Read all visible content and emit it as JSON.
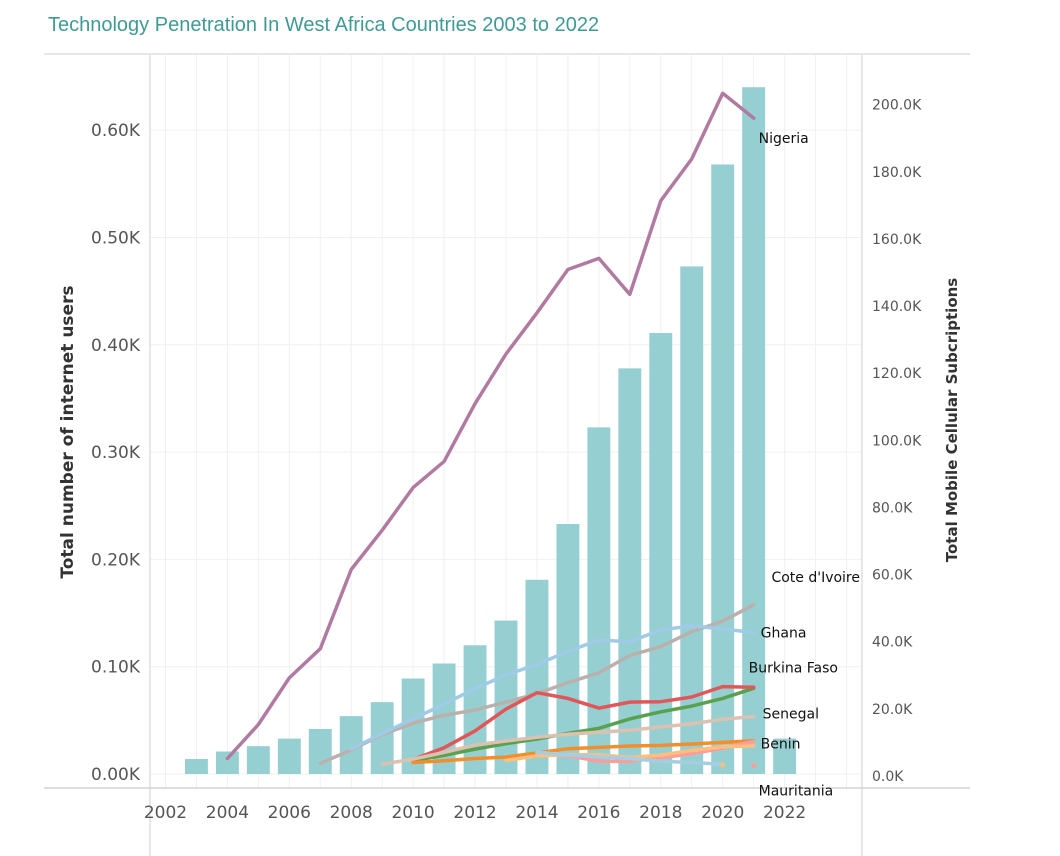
{
  "chart_data": {
    "type": "bar",
    "title": "Technology Penetration In West Africa Countries 2003 to 2022",
    "xlabel": "",
    "x_ticks": [
      "2002",
      "2004",
      "2006",
      "2008",
      "2010",
      "2012",
      "2014",
      "2016",
      "2018",
      "2020",
      "2022"
    ],
    "left_axis": {
      "label": "Total number of internet users",
      "ticks": [
        "0.00K",
        "0.10K",
        "0.20K",
        "0.30K",
        "0.40K",
        "0.50K",
        "0.60K"
      ],
      "ylim": [
        -0.013,
        0.67
      ]
    },
    "right_axis": {
      "label": "Total Mobile Cellular Subcriptions",
      "ticks": [
        "0.0K",
        "20.0K",
        "40.0K",
        "60.0K",
        "80.0K",
        "100.0K",
        "120.0K",
        "140.0K",
        "160.0K",
        "180.0K",
        "200.0K"
      ],
      "ylim": [
        -3.6,
        214.8
      ]
    },
    "bars": {
      "color": "#96cfd1",
      "x": [
        2003,
        2004,
        2005,
        2006,
        2007,
        2008,
        2009,
        2010,
        2011,
        2012,
        2013,
        2014,
        2015,
        2016,
        2017,
        2018,
        2019,
        2020,
        2021,
        2022
      ],
      "values": [
        0.014,
        0.021,
        0.026,
        0.033,
        0.042,
        0.054,
        0.067,
        0.089,
        0.103,
        0.12,
        0.143,
        0.181,
        0.233,
        0.323,
        0.378,
        0.411,
        0.473,
        0.568,
        0.64,
        0.033
      ]
    },
    "series": [
      {
        "name": "Nigeria",
        "color": "#b07aa1",
        "x": [
          2004,
          2005,
          2006,
          2007,
          2008,
          2009,
          2010,
          2011,
          2012,
          2013,
          2014,
          2015,
          2016,
          2017,
          2018,
          2019,
          2020,
          2021
        ],
        "values": [
          5.2,
          15.3,
          29.2,
          37.9,
          61.5,
          73.2,
          85.9,
          93.7,
          110.9,
          125.7,
          138.0,
          150.9,
          154.2,
          143.5,
          171.4,
          183.8,
          203.4,
          196.0
        ]
      },
      {
        "name": "Cote d'Ivoire",
        "color": "#bab0ac",
        "x": [
          2007,
          2008,
          2009,
          2010,
          2011,
          2012,
          2013,
          2014,
          2015,
          2016,
          2017,
          2018,
          2019,
          2020,
          2021
        ],
        "values": [
          3.8,
          7.7,
          12.3,
          15.7,
          18.1,
          19.6,
          22.0,
          24.5,
          27.8,
          30.7,
          35.9,
          38.5,
          43.0,
          46.1,
          51.0
        ]
      },
      {
        "name": "Ghana",
        "color": "#a0cbe8",
        "x": [
          2008,
          2009,
          2010,
          2011,
          2012,
          2013,
          2014,
          2015,
          2016,
          2017,
          2018,
          2019,
          2020,
          2021
        ],
        "values": [
          8.0,
          12.6,
          17.0,
          21.4,
          26.0,
          30.1,
          33.2,
          37.1,
          40.5,
          40.0,
          43.5,
          44.7,
          43.8,
          42.7
        ]
      },
      {
        "name": "Burkina Faso",
        "color": "#59a14f",
        "x": [
          2010,
          2011,
          2012,
          2013,
          2014,
          2015,
          2016,
          2017,
          2018,
          2019,
          2020,
          2021
        ],
        "values": [
          4.6,
          6.1,
          8.0,
          9.6,
          11.0,
          12.7,
          14.2,
          17.0,
          19.1,
          20.8,
          23.1,
          26.1
        ]
      },
      {
        "name": "Burkina Faso",
        "color": "#e15759",
        "x": [
          2010,
          2011,
          2012,
          2013,
          2014,
          2015,
          2016,
          2017,
          2018,
          2019,
          2020,
          2021
        ],
        "values": [
          4.9,
          8.4,
          13.4,
          19.9,
          24.8,
          23.1,
          20.2,
          22.0,
          22.1,
          23.5,
          26.6,
          26.4
        ]
      },
      {
        "name": "Senegal",
        "color": "#dcc1b1",
        "x": [
          2009,
          2010,
          2011,
          2012,
          2013,
          2014,
          2015,
          2016,
          2017,
          2018,
          2019,
          2020,
          2021
        ],
        "values": [
          3.5,
          5.0,
          7.0,
          9.2,
          10.4,
          11.5,
          12.4,
          13.0,
          13.6,
          14.6,
          15.5,
          16.9,
          17.7
        ]
      },
      {
        "name": "Benin",
        "color": "#f28e2b",
        "x": [
          2010,
          2011,
          2012,
          2013,
          2014,
          2015,
          2016,
          2017,
          2018,
          2019,
          2020,
          2021
        ],
        "values": [
          4.0,
          4.5,
          5.2,
          5.6,
          6.9,
          8.1,
          8.5,
          8.9,
          9.1,
          9.5,
          10.0,
          10.5
        ]
      },
      {
        "name": "Benin",
        "color": "#ff9d9a",
        "x": [
          2014,
          2015,
          2016,
          2017,
          2018,
          2019,
          2020,
          2021
        ],
        "values": [
          6.5,
          6.0,
          4.4,
          4.4,
          5.4,
          6.6,
          8.3,
          10.3
        ]
      },
      {
        "name": "Mauritania",
        "color": "#ffbe7d",
        "x": [
          2013,
          2014,
          2015,
          2016,
          2017,
          2018,
          2019,
          2020,
          2021
        ],
        "values": [
          4.6,
          6.0,
          6.3,
          6.3,
          5.5,
          6.2,
          7.6,
          8.7,
          8.9
        ]
      },
      {
        "name": "Mauritania",
        "color": "#a6cee3",
        "x": [
          2014,
          2015,
          2016,
          2017,
          2018,
          2019,
          2020
        ],
        "values": [
          7.1,
          6.2,
          5.7,
          5.2,
          4.4,
          4.0,
          3.5
        ]
      },
      {
        "name": "Mauritania",
        "color": "#ffbe7d",
        "x": [
          2020
        ],
        "values": [
          3.3
        ]
      },
      {
        "name": "Mauritania",
        "color": "#ff9d9a",
        "x": [
          2021
        ],
        "values": [
          3.1
        ]
      }
    ],
    "series_labels": [
      {
        "text": "Nigeria",
        "series": 0
      },
      {
        "text": "Cote d'Ivoire",
        "series": 1
      },
      {
        "text": "Ghana",
        "series": 2
      },
      {
        "text": "Burkina Faso",
        "series": 4
      },
      {
        "text": "Senegal",
        "series": 5
      },
      {
        "text": "Benin",
        "series": 6
      },
      {
        "text": "Mauritania",
        "series": 11
      }
    ],
    "grid": true,
    "legend": "none"
  }
}
